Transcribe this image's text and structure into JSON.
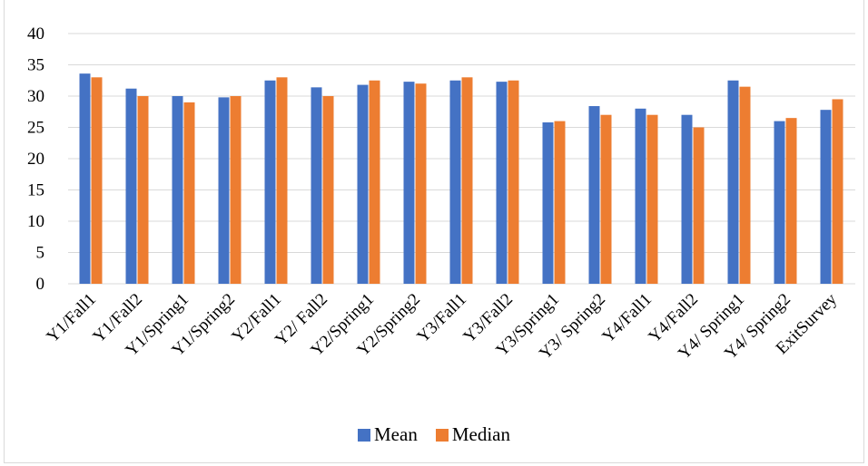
{
  "chart_data": {
    "type": "bar",
    "title": "",
    "xlabel": "",
    "ylabel": "",
    "categories": [
      "Y1/Fall1",
      "Y1/Fall2",
      "Y1/Spring1",
      "Y1/Spring2",
      "Y2/Fall1",
      "Y2/ Fall2",
      "Y2/Spring1",
      "Y2/Spring2",
      "Y3/Fall1",
      "Y3/Fall2",
      "Y3/Spring1",
      "Y3/ Spring2",
      "Y4/Fall1",
      "Y4/Fall2",
      "Y4/ Spring1",
      "Y4/ Spring2",
      "ExitSurvey"
    ],
    "series": [
      {
        "name": "Mean",
        "color": "#4472c4",
        "values": [
          33.6,
          31.2,
          30,
          29.8,
          32.5,
          31.4,
          31.8,
          32.3,
          32.5,
          32.3,
          25.8,
          28.4,
          28,
          27,
          32.5,
          26,
          27.8
        ]
      },
      {
        "name": "Median",
        "color": "#ed7d31",
        "values": [
          33,
          30,
          29,
          30,
          33,
          30,
          32.5,
          32,
          33,
          32.5,
          26,
          27,
          27,
          25,
          31.5,
          26.5,
          29.5
        ]
      }
    ],
    "ylim": [
      0,
      40
    ],
    "yticks": [
      0,
      5,
      10,
      15,
      20,
      25,
      30,
      35,
      40
    ],
    "grid": true,
    "legend_position": "bottom"
  }
}
